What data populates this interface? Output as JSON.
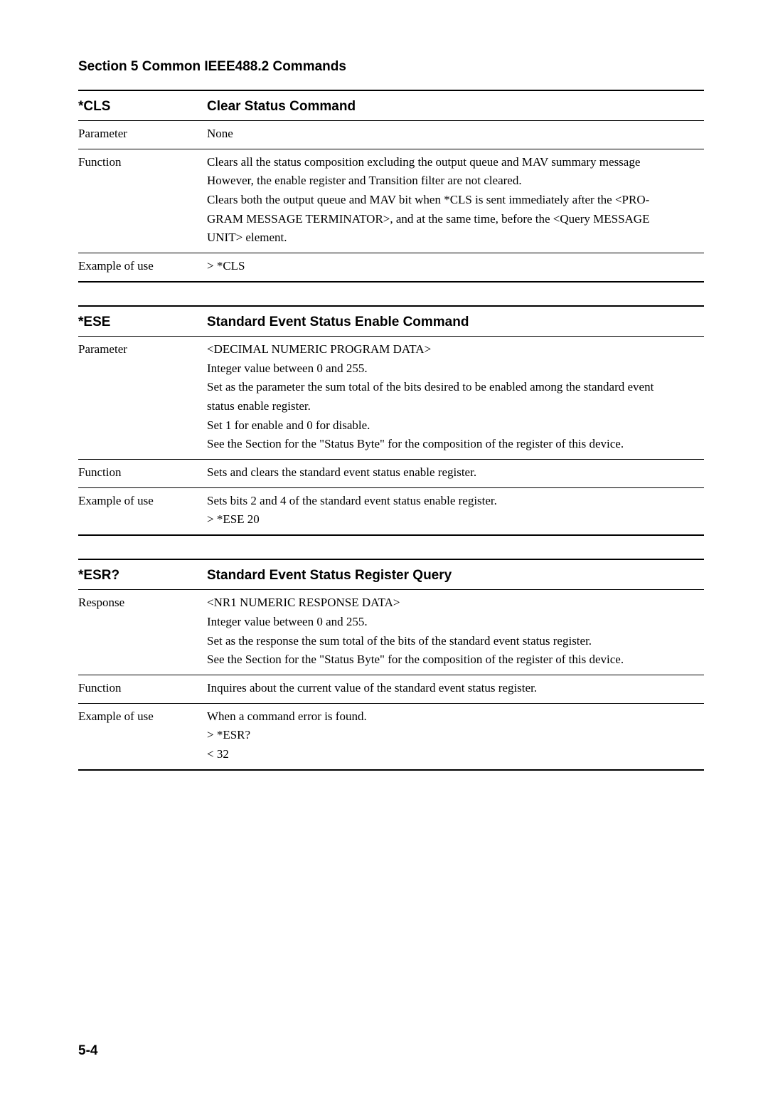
{
  "section_title": "Section 5   Common IEEE488.2 Commands",
  "commands": [
    {
      "name": "*CLS",
      "title": "Clear Status Command",
      "rows": [
        {
          "label": "Parameter",
          "lines": [
            "None"
          ]
        },
        {
          "label": "Function",
          "lines": [
            "Clears all the status composition excluding the output queue and MAV summary message",
            "However, the enable register and Transition filter are not cleared.",
            "Clears both the output queue and MAV bit when *CLS is sent immediately after the <PRO-",
            "GRAM MESSAGE TERMINATOR>, and at the same time, before the <Query MESSAGE",
            "UNIT> element."
          ]
        },
        {
          "label": "Example of use",
          "lines": [
            "> *CLS"
          ]
        }
      ]
    },
    {
      "name": "*ESE",
      "title": "Standard Event Status Enable Command",
      "rows": [
        {
          "label": "Parameter",
          "lines": [
            "<DECIMAL NUMERIC PROGRAM DATA>",
            "Integer value between 0 and 255.",
            "Set as the parameter the sum total of the bits desired to be enabled among the standard event",
            "status enable register.",
            "Set 1 for enable and 0 for disable.",
            "See the Section for the \"Status Byte\" for the composition of the register of this device."
          ]
        },
        {
          "label": "Function",
          "lines": [
            "Sets and clears the standard event status enable register."
          ]
        },
        {
          "label": "Example of use",
          "lines": [
            "Sets bits 2 and 4 of the standard event status enable register.",
            "> *ESE 20"
          ]
        }
      ]
    },
    {
      "name": "*ESR?",
      "title": "Standard Event Status Register Query",
      "rows": [
        {
          "label": "Response",
          "lines": [
            "<NR1 NUMERIC RESPONSE DATA>",
            "Integer value between 0 and 255.",
            "Set as the response the sum total of the bits of the standard event status register.",
            "See the Section for the \"Status Byte\" for the composition of the register of this device."
          ]
        },
        {
          "label": "Function",
          "lines": [
            "Inquires about the current value of the standard event status register."
          ]
        },
        {
          "label": "Example of use",
          "lines": [
            "When a command error is found.",
            "> *ESR?",
            "< 32"
          ]
        }
      ]
    }
  ],
  "page_number": "5-4"
}
